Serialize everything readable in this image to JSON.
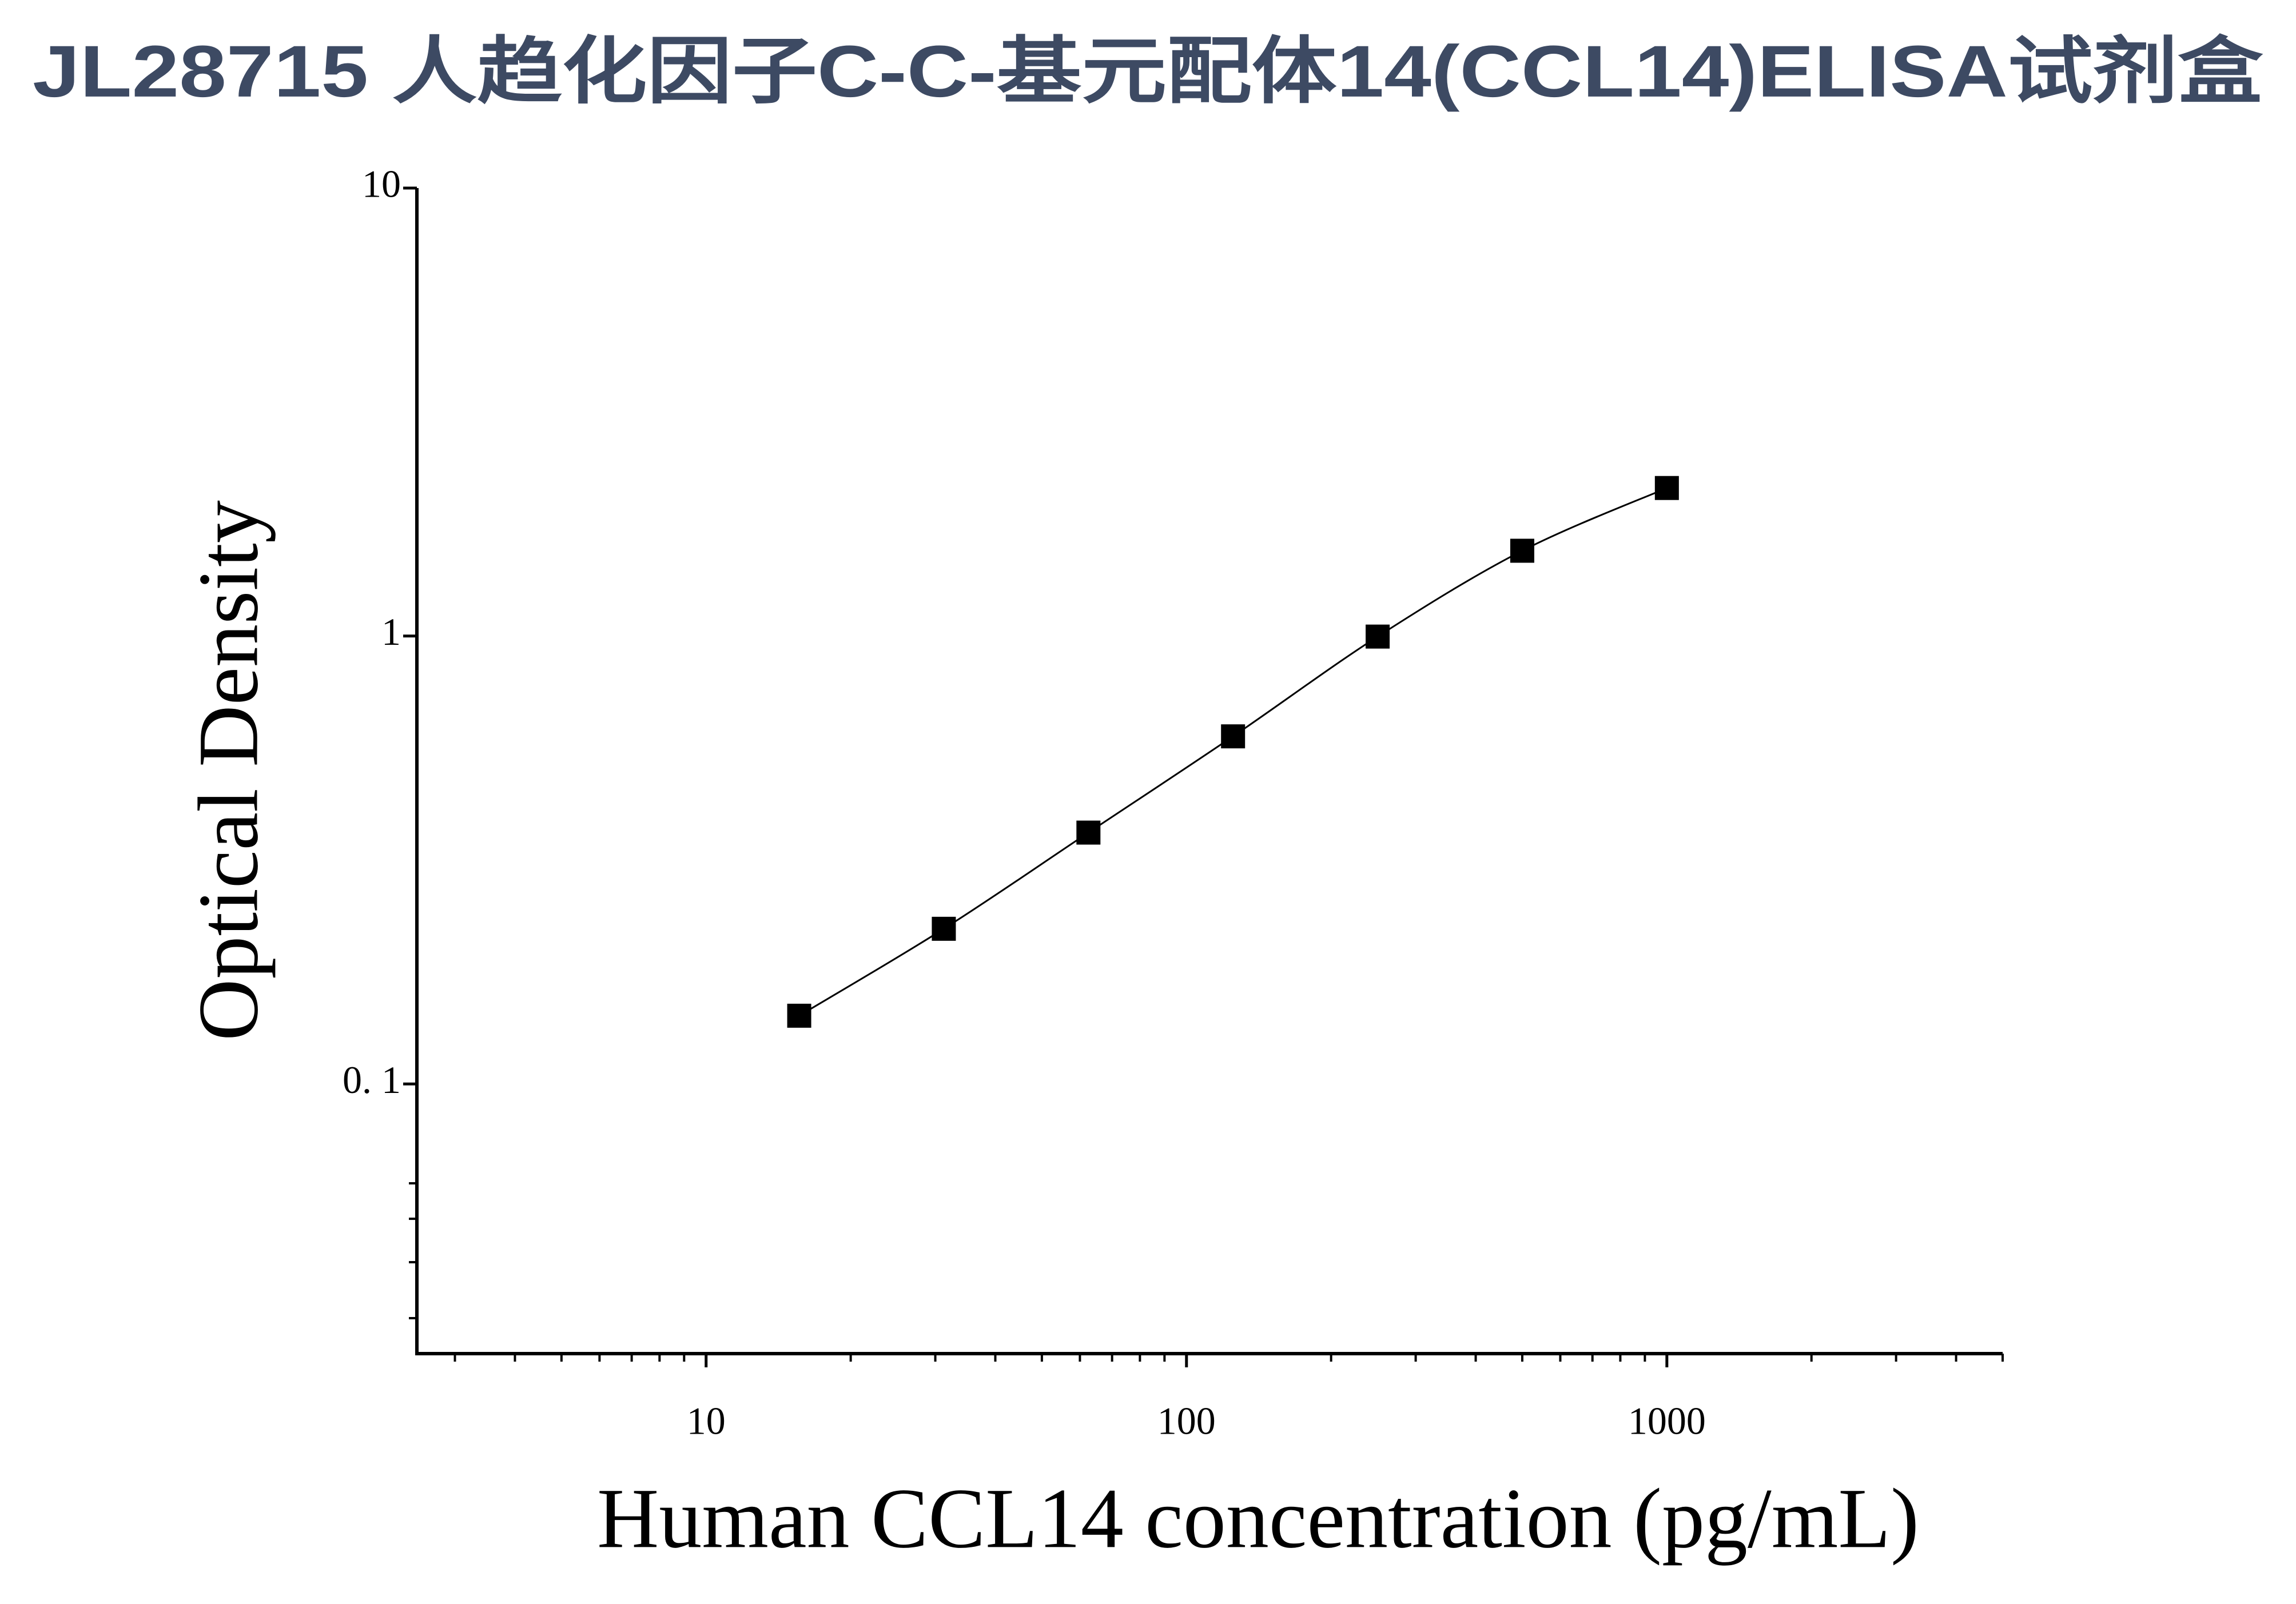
{
  "chart_data": {
    "type": "scatter",
    "title": "JL28715 人趋化因子C-C-基元配体14(CCL14)ELISA试剂盒",
    "x_label": "Human CCL14 concentration (pg/mL)",
    "y_label": "Optical Density",
    "x_log": true,
    "y_log": true,
    "fit_line": true,
    "series": [
      {
        "color": "#000000",
        "x": [
          15.625,
          31.25,
          62.5,
          125,
          250,
          500,
          1000
        ],
        "values": [
          0.142,
          0.222,
          0.364,
          0.597,
          0.997,
          1.55,
          2.14
        ]
      }
    ],
    "xlim": [
      2.5,
      5000
    ],
    "xticks": [
      10,
      100,
      1000
    ],
    "xminorticks": [
      3,
      4,
      5,
      6,
      7,
      8,
      9,
      20,
      30,
      40,
      50,
      60,
      70,
      80,
      90,
      200,
      300,
      400,
      500,
      600,
      700,
      800,
      900,
      2000,
      3000,
      4000,
      5000
    ],
    "ylim": [
      0.025,
      10
    ],
    "yticks": [
      {
        "value": 0.1,
        "label": "0. 1"
      },
      1,
      10
    ],
    "yminorticks": [
      0.06,
      0.05,
      0.04,
      0.03
    ]
  }
}
